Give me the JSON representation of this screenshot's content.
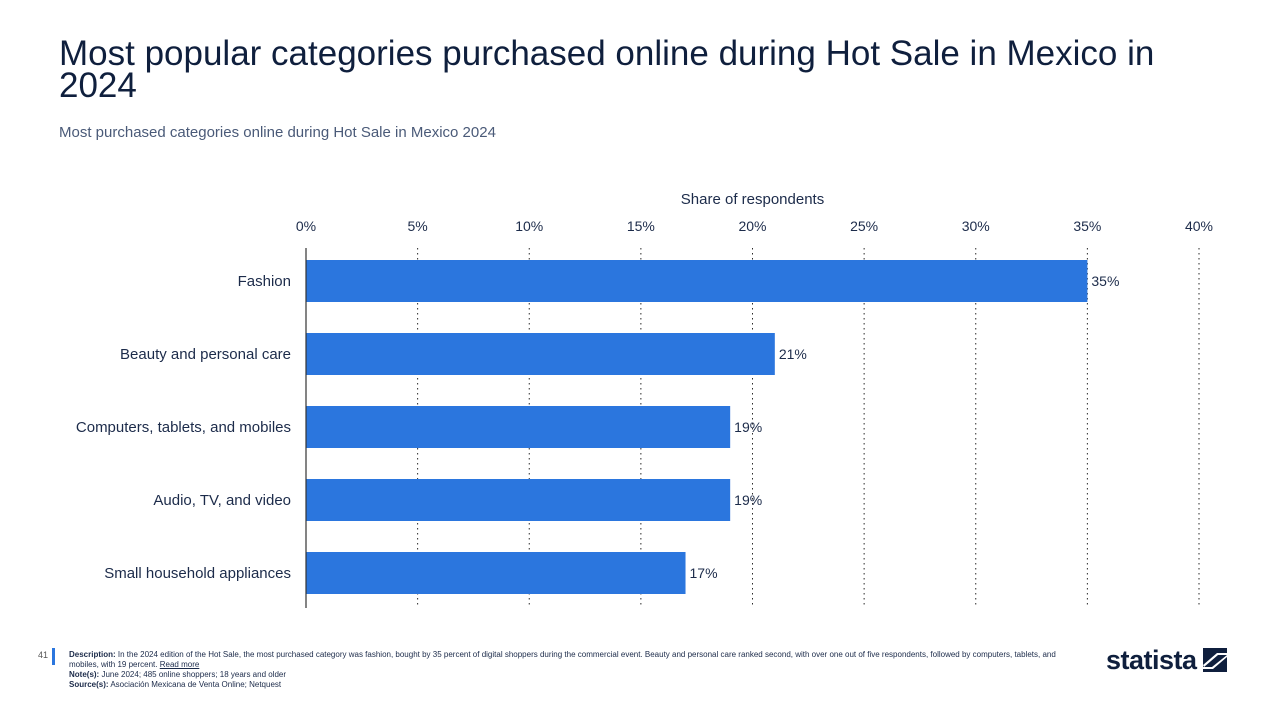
{
  "header": {
    "title": "Most popular categories purchased online during Hot Sale in Mexico in 2024",
    "subtitle": "Most purchased categories online during Hot Sale in Mexico 2024"
  },
  "chart_data": {
    "type": "bar",
    "orientation": "horizontal",
    "xlabel": "Share of respondents",
    "xlim": [
      0,
      40
    ],
    "x_ticks": [
      0,
      5,
      10,
      15,
      20,
      25,
      30,
      35,
      40
    ],
    "tick_suffix": "%",
    "categories": [
      "Fashion",
      "Beauty and personal care",
      "Computers, tablets, and mobiles",
      "Audio, TV, and video",
      "Small household appliances"
    ],
    "values": [
      35,
      21,
      19,
      19,
      17
    ],
    "data_labels": [
      "35%",
      "21%",
      "19%",
      "19%",
      "17%"
    ],
    "bar_color": "#2b76de",
    "grid": true,
    "axis_position": "top"
  },
  "footer": {
    "page_number": "41",
    "description_label": "Description:",
    "description_text": "In the 2024 edition of the Hot Sale, the most purchased category was fashion, bought by 35 percent of digital shoppers during the commercial event. Beauty and personal care ranked second, with over one out of five respondents, followed by computers, tablets, and mobiles, with 19 percent.",
    "read_more": "Read more",
    "notes_label": "Note(s):",
    "notes_text": "June 2024; 485 online shoppers; 18 years and older",
    "source_label": "Source(s):",
    "source_text": "Asociación Mexicana de Venta Online; Netquest",
    "logo": "statista"
  },
  "colors": {
    "accent": "#2b76de",
    "title": "#0f1f3d"
  }
}
